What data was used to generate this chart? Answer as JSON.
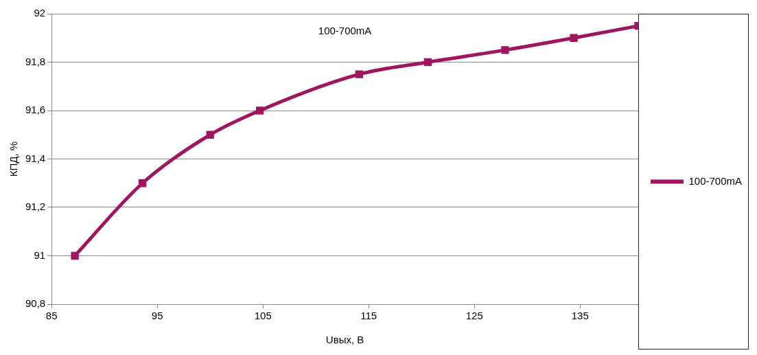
{
  "chart_data": {
    "type": "line",
    "xlabel": "Uвых, В",
    "ylabel": "КПД, %",
    "annotations": [
      "100-700mA"
    ],
    "x": [
      87.2,
      93.6,
      100,
      104.7,
      114.1,
      120.6,
      127.9,
      134.4,
      140.5
    ],
    "series": [
      {
        "name": "100-700mA",
        "color": "#a0155f",
        "values": [
          91,
          91.3,
          91.5,
          91.6,
          91.75,
          91.8,
          91.85,
          91.9,
          91.95
        ]
      }
    ],
    "xlim": [
      85,
      140.5
    ],
    "xticks": [
      85,
      95,
      105,
      115,
      125,
      135
    ],
    "ylim": [
      90.8,
      92
    ],
    "yticks": [
      {
        "value": 90.8,
        "label": "90,8"
      },
      {
        "value": 91,
        "label": "91"
      },
      {
        "value": 91.2,
        "label": "91,2"
      },
      {
        "value": 91.4,
        "label": "91,4"
      },
      {
        "value": 91.6,
        "label": "91,6"
      },
      {
        "value": 91.8,
        "label": "91,8"
      },
      {
        "value": 92,
        "label": "92"
      }
    ],
    "grid": "y",
    "legend": "right",
    "marker": "square",
    "line_style": "solid"
  }
}
